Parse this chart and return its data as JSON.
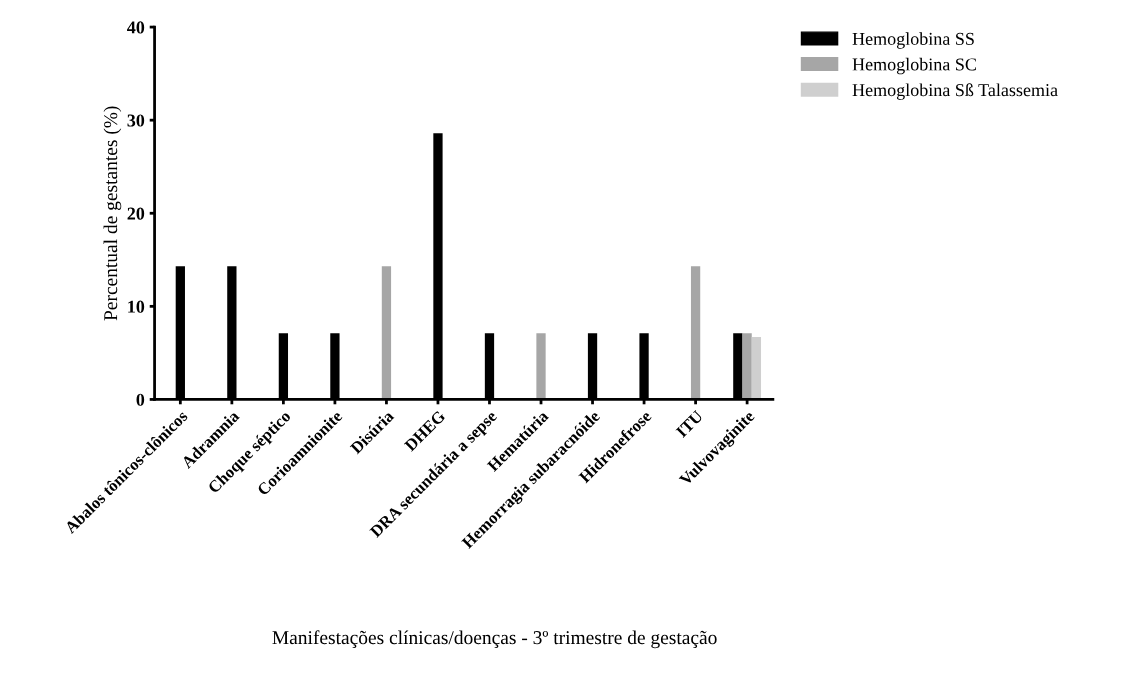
{
  "chart_data": {
    "type": "bar",
    "xlabel": "Manifestações clínicas/doenças - 3º trimestre de gestação",
    "ylabel": "Percentual de gestantes (%)",
    "categories": [
      "Abalos tônicos-clônicos",
      "Adramnia",
      "Choque séptico",
      "Corioamnionite",
      "Disúria",
      "DHEG",
      "DRA secundária a sepse",
      "Hematúria",
      "Hemorragia subaracnóide",
      "Hidronefrose",
      "ITU",
      "Vulvovaginite"
    ],
    "series": [
      {
        "name": "Hemoglobina SS",
        "color": "#000000",
        "values": [
          14.3,
          14.3,
          7.1,
          7.1,
          null,
          28.6,
          7.1,
          null,
          7.1,
          7.1,
          null,
          7.1
        ]
      },
      {
        "name": "Hemoglobina SC",
        "color": "#a6a6a6",
        "values": [
          null,
          null,
          null,
          null,
          14.3,
          null,
          null,
          7.1,
          null,
          null,
          14.3,
          7.1
        ]
      },
      {
        "name": "Hemoglobina Sß Talassemia",
        "color": "#cfcfcf",
        "values": [
          null,
          null,
          null,
          null,
          null,
          null,
          null,
          null,
          null,
          null,
          null,
          6.7
        ]
      }
    ],
    "ylim": [
      0,
      40
    ],
    "yticks": [
      0,
      10,
      20,
      30,
      40
    ],
    "grid": false,
    "legend": "top right"
  }
}
